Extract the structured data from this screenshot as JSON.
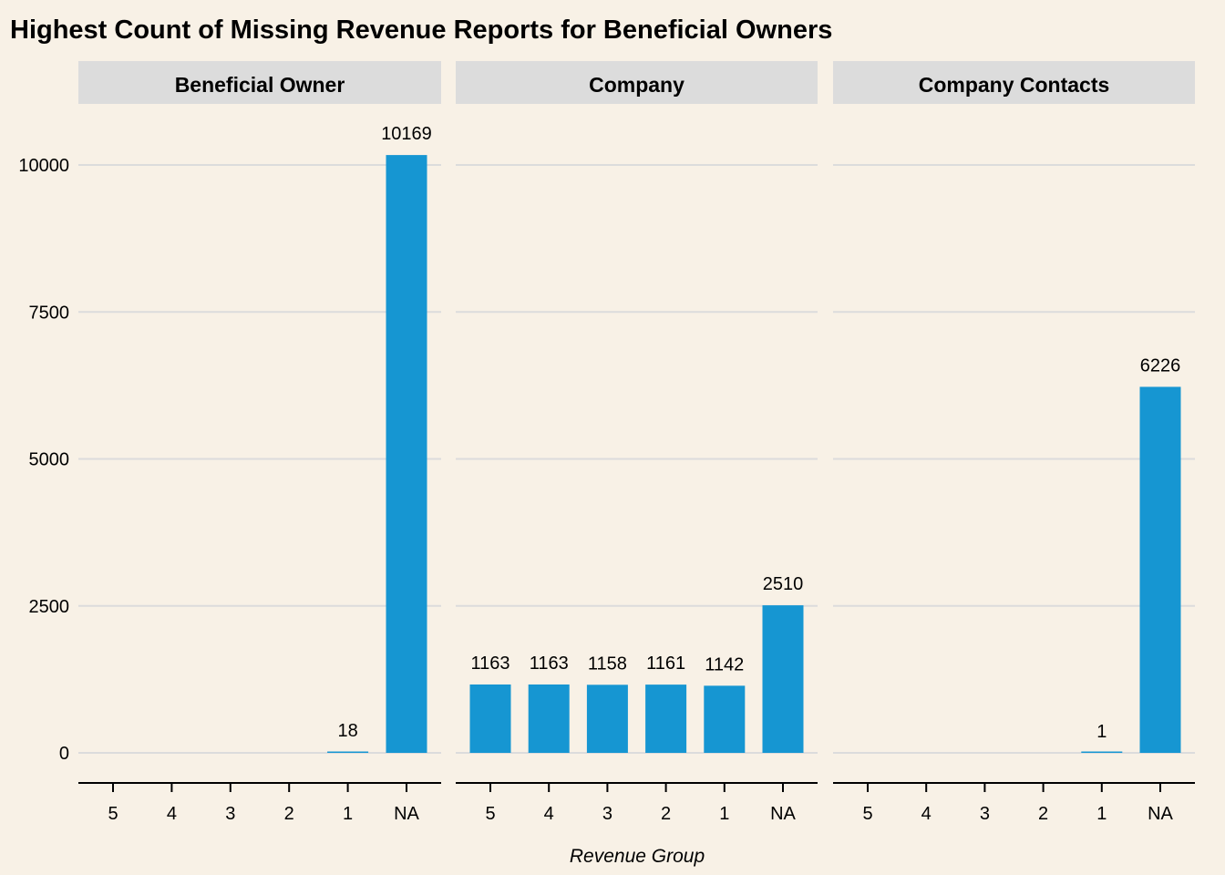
{
  "chart_data": {
    "type": "bar",
    "title": "Highest Count of Missing Revenue Reports for Beneficial Owners",
    "xlabel": "Revenue Group",
    "ylabel": "",
    "categories": [
      "5",
      "4",
      "3",
      "2",
      "1",
      "NA"
    ],
    "ylim": [
      -500,
      10550
    ],
    "yticks": [
      0,
      2500,
      5000,
      7500,
      10000
    ],
    "ytick_labels": [
      "0",
      "2500",
      "5000",
      "7500",
      "10000"
    ],
    "grid": "horizontal-major",
    "bar_color": "#1696D2",
    "strip_color": "#DCDCDC",
    "grid_color": "#DCDCDC",
    "background": "#F8F1E6",
    "panels": [
      {
        "name": "Beneficial Owner",
        "values": [
          null,
          null,
          null,
          null,
          18,
          10169
        ],
        "labels": [
          "",
          "",
          "",
          "",
          "18",
          "10169"
        ]
      },
      {
        "name": "Company",
        "values": [
          1163,
          1163,
          1158,
          1161,
          1142,
          2510
        ],
        "labels": [
          "1163",
          "1163",
          "1158",
          "1161",
          "1142",
          "2510"
        ]
      },
      {
        "name": "Company Contacts",
        "values": [
          null,
          null,
          null,
          null,
          1,
          6226
        ],
        "labels": [
          "",
          "",
          "",
          "",
          "1",
          "6226"
        ]
      }
    ]
  }
}
